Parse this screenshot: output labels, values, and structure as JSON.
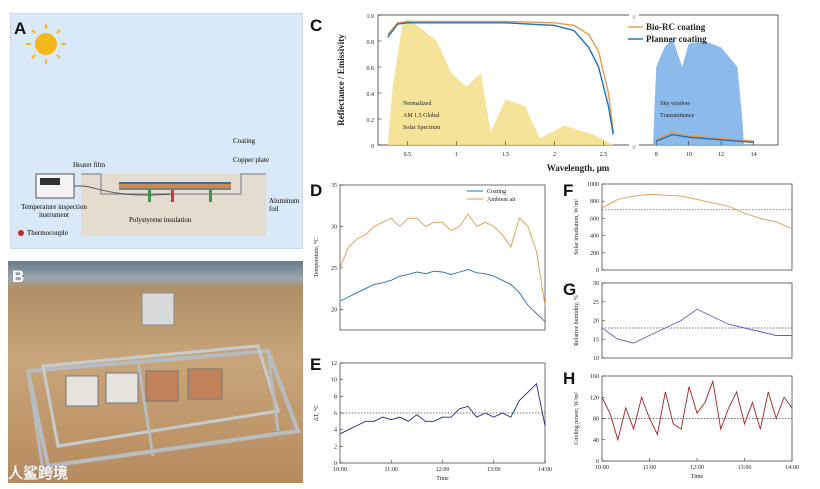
{
  "panels": {
    "a": "A",
    "b": "B",
    "c": "C",
    "d": "D",
    "e": "E",
    "f": "F",
    "g": "G",
    "h": "H"
  },
  "schematic": {
    "coating": "Coating",
    "copper_plate": "Copper plate",
    "heater_film": "Heater film",
    "aluminum_foil": "Aluminum foil",
    "insulation": "Polystyrene insulation",
    "instrument": "Temperature inspection instrument",
    "thermocouple": "Thermocouple"
  },
  "watermark": "人鲨跨境",
  "colors": {
    "blue": "#1f6fb8",
    "orange": "#e89a4a",
    "dark_blue": "#1c2a8c",
    "purple": "#6a5acd",
    "red": "#a62222",
    "sky_fill": "#7fb2e8",
    "solar_fill": "#f5e08f"
  },
  "chart_data": [
    {
      "id": "C",
      "type": "line",
      "title": "",
      "xlabel": "Wavelength, μm",
      "ylabel": "Reflectance / Emissivity",
      "ylim": [
        0,
        1.0
      ],
      "yticks": [
        "0",
        "0.2",
        "0.4",
        "0.6",
        "0.8",
        "1.0"
      ],
      "xticks": [
        "0.5",
        "1",
        "1.5",
        "2",
        "2.5",
        "8",
        "10",
        "12",
        "14"
      ],
      "legend": [
        "Bio-RC coating",
        "Planner coating"
      ],
      "annotations": {
        "solar": [
          "Normalized",
          "AM 1.5 Global",
          "Solar Spectrum"
        ],
        "sky": [
          "Sky window",
          "Transmittance"
        ]
      },
      "series": [
        {
          "name": "Bio-RC coating",
          "x": [
            0.3,
            0.4,
            0.5,
            1.0,
            1.5,
            2.0,
            2.2,
            2.35,
            2.45,
            2.55,
            2.6,
            8,
            9,
            10,
            12,
            14
          ],
          "values": [
            0.85,
            0.94,
            0.95,
            0.95,
            0.95,
            0.94,
            0.92,
            0.85,
            0.72,
            0.4,
            0.1,
            0.04,
            0.1,
            0.07,
            0.05,
            0.03
          ]
        },
        {
          "name": "Planner coating",
          "x": [
            0.3,
            0.4,
            0.5,
            1.0,
            1.5,
            2.0,
            2.2,
            2.35,
            2.45,
            2.55,
            2.6,
            8,
            9,
            10,
            12,
            14
          ],
          "values": [
            0.83,
            0.93,
            0.94,
            0.94,
            0.94,
            0.92,
            0.88,
            0.75,
            0.6,
            0.3,
            0.08,
            0.03,
            0.08,
            0.06,
            0.04,
            0.02
          ]
        }
      ]
    },
    {
      "id": "D",
      "type": "line",
      "xlabel": "",
      "ylabel": "Temperature, °C",
      "ylim": [
        17.5,
        35
      ],
      "yticks": [
        "20",
        "25",
        "30",
        "35"
      ],
      "legend": [
        "Coating",
        "Ambient air"
      ],
      "series": [
        {
          "name": "Coating",
          "x": [
            0,
            10,
            20,
            30,
            40,
            50,
            60,
            70,
            80,
            90,
            100,
            110,
            120,
            130,
            140,
            150,
            160,
            170,
            180,
            190,
            200,
            210,
            220,
            230,
            240
          ],
          "values": [
            21,
            21.5,
            22,
            22.5,
            23,
            23.2,
            23.5,
            24,
            24.2,
            24.5,
            24.3,
            24.6,
            24.5,
            24.2,
            24.5,
            24.8,
            24.4,
            24.3,
            24,
            23.5,
            23,
            22,
            20.5,
            19.5,
            18.5
          ]
        },
        {
          "name": "Ambient air",
          "x": [
            0,
            10,
            20,
            30,
            40,
            50,
            60,
            70,
            80,
            90,
            100,
            110,
            120,
            130,
            140,
            150,
            160,
            170,
            180,
            190,
            200,
            210,
            220,
            230,
            240
          ],
          "values": [
            25,
            27.5,
            28.5,
            29,
            30,
            30.5,
            31,
            30,
            31,
            31,
            30,
            30.5,
            30.5,
            29.5,
            30,
            31.5,
            30,
            30.5,
            30,
            29,
            27.5,
            31,
            30,
            27,
            20.5
          ]
        }
      ]
    },
    {
      "id": "E",
      "type": "line",
      "xlabel": "Time",
      "ylabel": "ΔT, °C",
      "ylim": [
        0,
        12
      ],
      "yticks": [
        "0",
        "2",
        "4",
        "6",
        "8",
        "10",
        "12"
      ],
      "xticks": [
        "10:00",
        "11:00",
        "12:00",
        "13:00",
        "14:00"
      ],
      "reference": 6,
      "series": [
        {
          "name": "ΔT",
          "x": [
            0,
            10,
            20,
            30,
            40,
            50,
            60,
            70,
            80,
            90,
            100,
            110,
            120,
            130,
            140,
            150,
            160,
            170,
            180,
            190,
            200,
            210,
            220,
            230,
            240
          ],
          "values": [
            3.5,
            4,
            4.5,
            5,
            5,
            5.5,
            5.2,
            5.5,
            5,
            5.8,
            5,
            5,
            5.5,
            5.5,
            6.5,
            6.8,
            5.5,
            6,
            5.5,
            6,
            5.5,
            7.5,
            8.5,
            9.5,
            4.5
          ]
        }
      ]
    },
    {
      "id": "F",
      "type": "line",
      "xlabel": "",
      "ylabel": "Solar irradiation, W/m²",
      "ylim": [
        0,
        1000
      ],
      "yticks": [
        "0",
        "200",
        "400",
        "600",
        "800",
        "1000"
      ],
      "reference": 700,
      "series": [
        {
          "name": "Solar irradiation",
          "x": [
            0,
            20,
            40,
            60,
            80,
            100,
            120,
            140,
            160,
            180,
            200,
            220,
            240
          ],
          "values": [
            720,
            820,
            860,
            880,
            870,
            860,
            820,
            780,
            740,
            660,
            600,
            560,
            480
          ]
        }
      ]
    },
    {
      "id": "G",
      "type": "line",
      "xlabel": "",
      "ylabel": "Relative humidity, %",
      "ylim": [
        10,
        30
      ],
      "yticks": [
        "10",
        "15",
        "20",
        "25",
        "30"
      ],
      "reference": 18,
      "series": [
        {
          "name": "Relative humidity",
          "x": [
            0,
            20,
            40,
            60,
            80,
            100,
            120,
            140,
            160,
            180,
            200,
            220,
            240
          ],
          "values": [
            18,
            15,
            14,
            16,
            18,
            20,
            23,
            21,
            19,
            18,
            17,
            16,
            16
          ]
        }
      ]
    },
    {
      "id": "H",
      "type": "line",
      "xlabel": "Time",
      "ylabel": "Cooling power, W/m²",
      "ylim": [
        0,
        160
      ],
      "yticks": [
        "0",
        "40",
        "80",
        "120",
        "160"
      ],
      "xticks": [
        "10:00",
        "11:00",
        "12:00",
        "13:00",
        "14:00"
      ],
      "reference": 80,
      "series": [
        {
          "name": "Cooling power",
          "x": [
            0,
            10,
            20,
            30,
            40,
            50,
            60,
            70,
            80,
            90,
            100,
            110,
            120,
            130,
            140,
            150,
            160,
            170,
            180,
            190,
            200,
            210,
            220,
            230,
            240
          ],
          "values": [
            120,
            90,
            40,
            100,
            60,
            120,
            80,
            50,
            130,
            70,
            60,
            140,
            90,
            110,
            150,
            60,
            100,
            130,
            70,
            110,
            60,
            130,
            80,
            120,
            100
          ]
        }
      ]
    }
  ]
}
